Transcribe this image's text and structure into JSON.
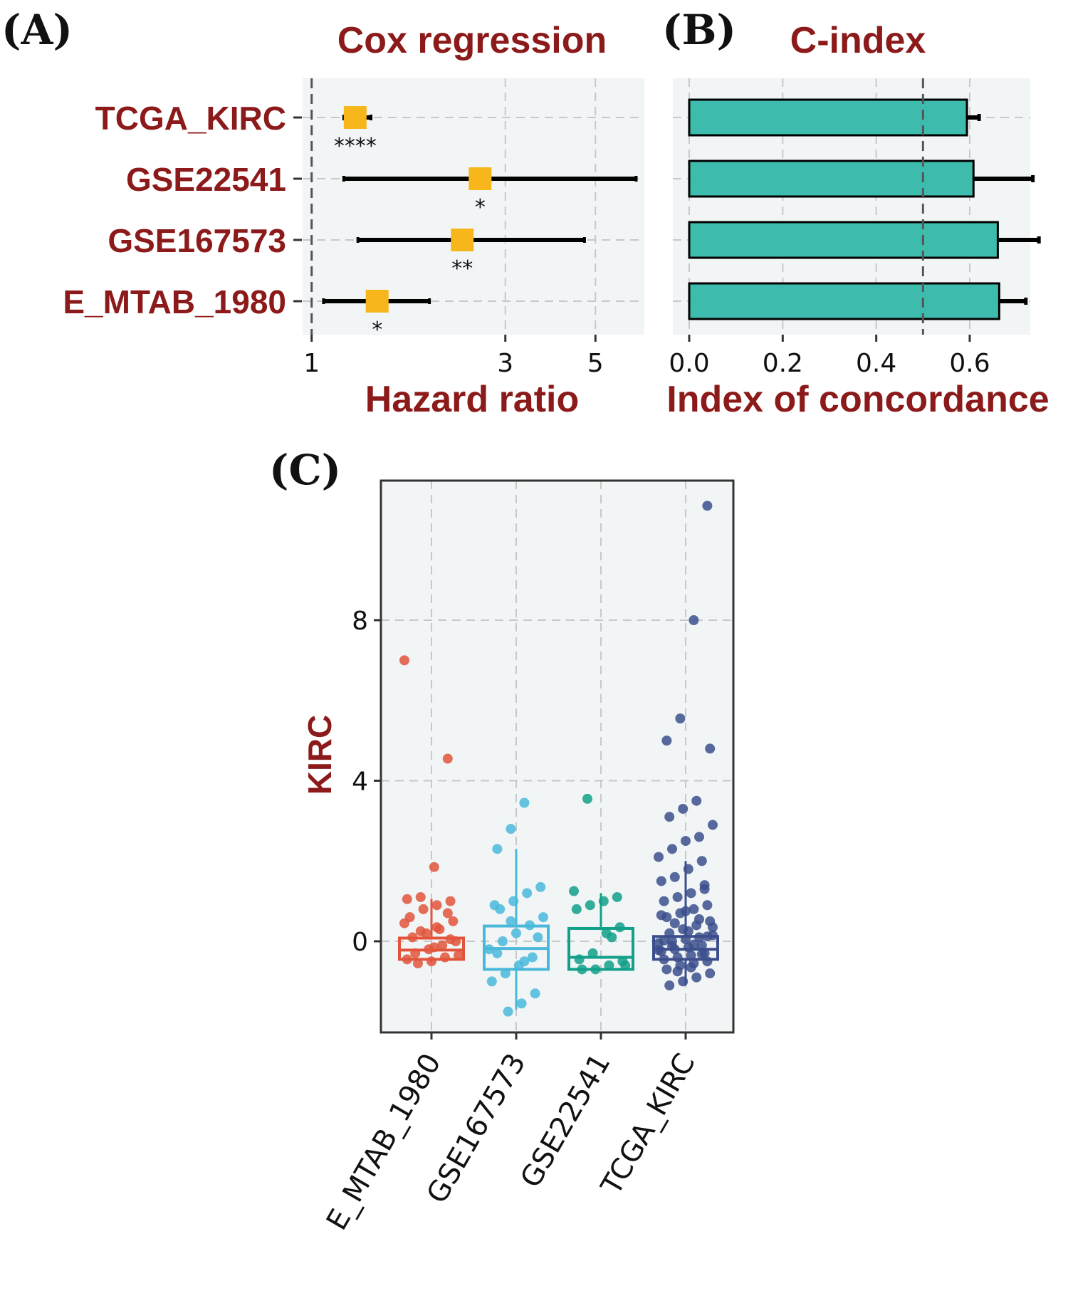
{
  "colors": {
    "title": "#8c1a1a",
    "panel_bg": "#f1f5f6",
    "grid": "#c8c8c8",
    "marker": "#f7b61b",
    "bar": "#3dbcae",
    "box_colors": [
      "#e2553c",
      "#4ab8da",
      "#12a08a",
      "#3c4f8c"
    ]
  },
  "chart_data": [
    {
      "panel": "(A)",
      "type": "scatter",
      "title": "Cox regression",
      "xlabel": "Hazard ratio",
      "x_scale": "log",
      "xticks": [
        "1",
        "3",
        "5"
      ],
      "xtick_values": [
        1,
        3,
        5
      ],
      "xlim": [
        0.95,
        6.6
      ],
      "reference_line": 1,
      "categories": [
        "TCGA_KIRC",
        "GSE22541",
        "GSE167573",
        "E_MTAB_1980"
      ],
      "hr": [
        1.28,
        2.6,
        2.35,
        1.45
      ],
      "lower": [
        1.2,
        1.2,
        1.3,
        1.07
      ],
      "upper": [
        1.4,
        6.3,
        4.7,
        1.95
      ],
      "significance": [
        "****",
        "*",
        "**",
        "*"
      ]
    },
    {
      "panel": "(B)",
      "type": "bar",
      "title": "C-index",
      "xlabel": "Index of concordance",
      "xticks": [
        "0.0",
        "0.2",
        "0.4",
        "0.6"
      ],
      "xtick_values": [
        0,
        0.2,
        0.4,
        0.6
      ],
      "xlim": [
        0,
        0.75
      ],
      "reference_line": 0.5,
      "categories": [
        "TCGA_KIRC",
        "GSE22541",
        "GSE167573",
        "E_MTAB_1980"
      ],
      "values": [
        0.594,
        0.608,
        0.66,
        0.663
      ],
      "error_upper": [
        0.62,
        0.735,
        0.748,
        0.72
      ]
    },
    {
      "panel": "(C)",
      "type": "box",
      "ylabel": "KIRC",
      "yticks": [
        "0",
        "4",
        "8"
      ],
      "ytick_values": [
        0,
        4,
        8
      ],
      "ylim": [
        -2.4,
        11.4
      ],
      "categories": [
        "E_MTAB_1980",
        "GSE167573",
        "GSE22541",
        "TCGA_KIRC"
      ],
      "boxes": [
        {
          "min": -0.55,
          "q1": -0.45,
          "median": -0.22,
          "q3": 0.08,
          "max": 1.05
        },
        {
          "min": -1.7,
          "q1": -0.7,
          "median": -0.18,
          "q3": 0.38,
          "max": 2.3
        },
        {
          "min": -0.7,
          "q1": -0.7,
          "median": -0.4,
          "q3": 0.32,
          "max": 1.2
        },
        {
          "min": -1.1,
          "q1": -0.45,
          "median": -0.2,
          "q3": 0.12,
          "max": 2.0
        }
      ],
      "points": [
        [
          7.0,
          4.55,
          1.85,
          1.1,
          1.05,
          1.0,
          0.9,
          0.8,
          0.6,
          0.5,
          0.3,
          0.2,
          0.1,
          0.0,
          -0.1,
          -0.2,
          -0.3,
          -0.35,
          -0.4,
          -0.5,
          -0.55,
          0.45,
          0.7,
          -0.15,
          0.25,
          -0.45,
          0.05,
          0.35
        ],
        [
          3.45,
          2.8,
          2.3,
          1.35,
          1.2,
          1.0,
          0.8,
          0.6,
          0.4,
          0.2,
          0.0,
          -0.2,
          -0.4,
          -0.6,
          -0.8,
          -1.0,
          -1.3,
          -1.55,
          -1.75,
          0.9,
          0.1,
          -0.5,
          0.5,
          -0.3
        ],
        [
          3.55,
          1.25,
          1.1,
          1.0,
          0.9,
          0.8,
          0.35,
          0.2,
          -0.3,
          -0.45,
          -0.5,
          -0.6,
          -0.7,
          -0.7,
          -0.6,
          0.1
        ],
        [
          10.85,
          8.0,
          5.55,
          5.0,
          4.8,
          3.5,
          3.3,
          3.1,
          2.9,
          2.6,
          2.5,
          2.3,
          2.1,
          2.0,
          1.8,
          1.6,
          1.5,
          1.4,
          1.2,
          1.1,
          1.0,
          0.9,
          0.8,
          0.7,
          0.6,
          0.5,
          0.4,
          0.3,
          0.2,
          0.15,
          0.1,
          0.05,
          0.0,
          -0.05,
          -0.1,
          -0.15,
          -0.2,
          -0.25,
          -0.3,
          -0.35,
          -0.4,
          -0.45,
          -0.5,
          -0.55,
          -0.6,
          -0.7,
          -0.8,
          -0.9,
          -1.0,
          -1.1,
          0.35,
          0.55,
          0.75,
          -0.12,
          -0.22,
          -0.32,
          0.25,
          0.45,
          0.65,
          1.3,
          -0.65,
          -0.75,
          0.02,
          0.12,
          -0.08
        ]
      ]
    }
  ]
}
